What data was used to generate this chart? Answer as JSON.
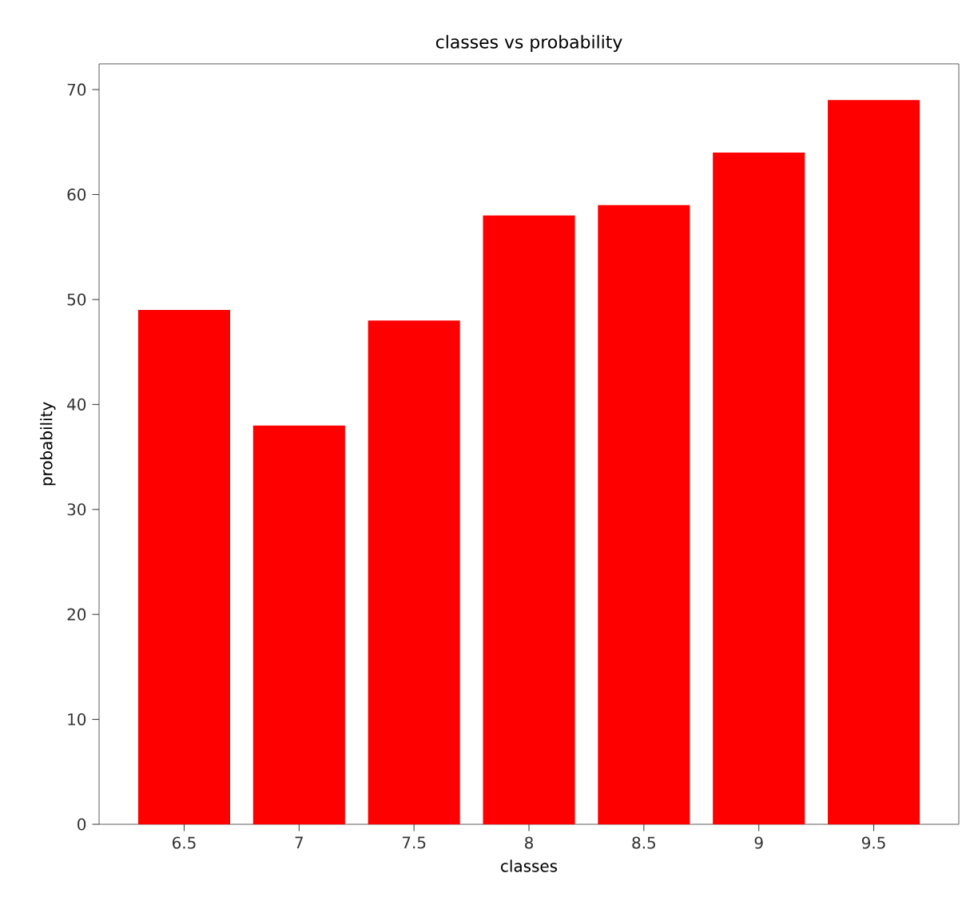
{
  "chart_data": {
    "type": "bar",
    "title": "classes vs probability",
    "xlabel": "classes",
    "ylabel": "probability",
    "x": [
      6.5,
      7,
      7.5,
      8,
      8.5,
      9,
      9.5
    ],
    "values": [
      49,
      38,
      48,
      58,
      59,
      64,
      69
    ],
    "color": "#ff0000",
    "xlim": [
      6.13,
      9.87
    ],
    "xticks": [
      6.5,
      7,
      7.5,
      8,
      8.5,
      9,
      9.5
    ],
    "ylim": [
      0,
      72.45
    ],
    "yticks": [
      0,
      10,
      20,
      30,
      40,
      50,
      60,
      70
    ]
  }
}
